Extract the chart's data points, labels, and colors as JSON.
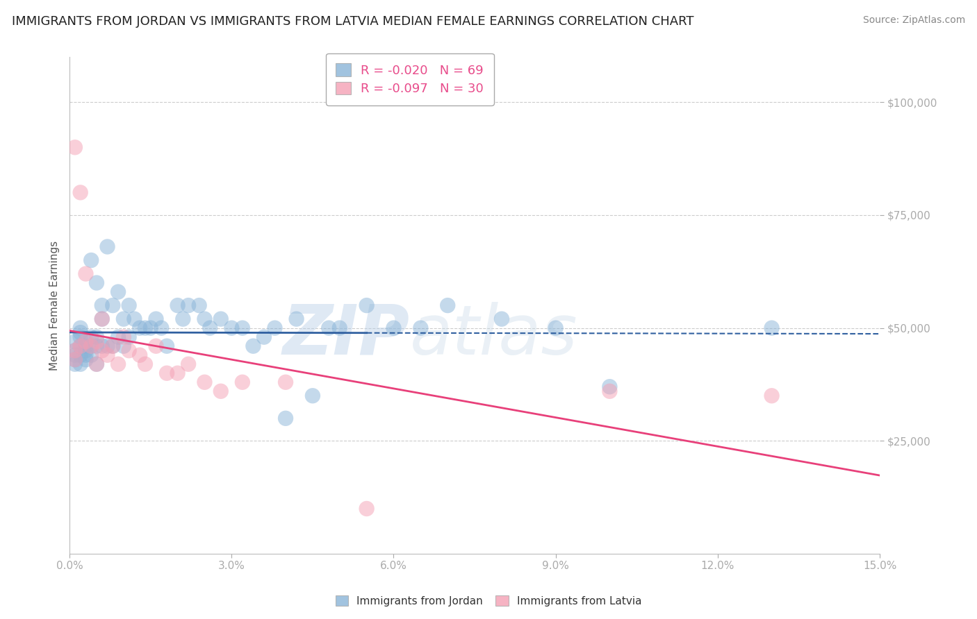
{
  "title": "IMMIGRANTS FROM JORDAN VS IMMIGRANTS FROM LATVIA MEDIAN FEMALE EARNINGS CORRELATION CHART",
  "source": "Source: ZipAtlas.com",
  "ylabel": "Median Female Earnings",
  "xlabel": "",
  "xlim": [
    0,
    0.15
  ],
  "ylim": [
    0,
    110000
  ],
  "xticks": [
    0.0,
    0.03,
    0.06,
    0.09,
    0.12,
    0.15
  ],
  "xtick_labels": [
    "0.0%",
    "3.0%",
    "6.0%",
    "9.0%",
    "12.0%",
    "15.0%"
  ],
  "yticks": [
    25000,
    50000,
    75000,
    100000
  ],
  "ytick_labels": [
    "$25,000",
    "$50,000",
    "$75,000",
    "$100,000"
  ],
  "jordan_color": "#8ab4d8",
  "latvia_color": "#f4a0b5",
  "jordan_line_color": "#3060a0",
  "latvia_line_color": "#e8407a",
  "jordan_line_solid_end": 0.055,
  "R_jordan": -0.02,
  "N_jordan": 69,
  "R_latvia": -0.097,
  "N_latvia": 30,
  "legend_text_color": "#e84c8b",
  "background_color": "#ffffff",
  "grid_color": "#cccccc",
  "axis_color": "#4472c4",
  "title_fontsize": 13,
  "tick_fontsize": 11,
  "watermark_text": "ZIPatlas",
  "jordan_x": [
    0.001,
    0.001,
    0.001,
    0.001,
    0.001,
    0.002,
    0.002,
    0.002,
    0.002,
    0.002,
    0.002,
    0.003,
    0.003,
    0.003,
    0.003,
    0.003,
    0.004,
    0.004,
    0.004,
    0.004,
    0.005,
    0.005,
    0.005,
    0.005,
    0.006,
    0.006,
    0.006,
    0.007,
    0.007,
    0.008,
    0.008,
    0.009,
    0.009,
    0.01,
    0.01,
    0.011,
    0.011,
    0.012,
    0.013,
    0.014,
    0.015,
    0.016,
    0.017,
    0.018,
    0.02,
    0.021,
    0.022,
    0.024,
    0.025,
    0.026,
    0.028,
    0.03,
    0.032,
    0.034,
    0.036,
    0.038,
    0.04,
    0.042,
    0.045,
    0.048,
    0.05,
    0.055,
    0.06,
    0.065,
    0.07,
    0.08,
    0.09,
    0.1,
    0.13
  ],
  "jordan_y": [
    45000,
    47000,
    43000,
    42000,
    44000,
    49000,
    46000,
    48000,
    44000,
    42000,
    50000,
    47000,
    45000,
    43000,
    46000,
    44000,
    65000,
    48000,
    46000,
    44000,
    60000,
    48000,
    46000,
    42000,
    55000,
    52000,
    46000,
    68000,
    46000,
    55000,
    46000,
    58000,
    48000,
    52000,
    46000,
    55000,
    48000,
    52000,
    50000,
    50000,
    50000,
    52000,
    50000,
    46000,
    55000,
    52000,
    55000,
    55000,
    52000,
    50000,
    52000,
    50000,
    50000,
    46000,
    48000,
    50000,
    30000,
    52000,
    35000,
    50000,
    50000,
    55000,
    50000,
    50000,
    55000,
    52000,
    50000,
    37000,
    50000
  ],
  "latvia_x": [
    0.001,
    0.001,
    0.001,
    0.002,
    0.002,
    0.003,
    0.003,
    0.004,
    0.005,
    0.005,
    0.006,
    0.006,
    0.007,
    0.008,
    0.009,
    0.01,
    0.011,
    0.013,
    0.014,
    0.016,
    0.018,
    0.02,
    0.022,
    0.025,
    0.028,
    0.032,
    0.04,
    0.055,
    0.1,
    0.13
  ],
  "latvia_y": [
    90000,
    45000,
    43000,
    80000,
    46000,
    47000,
    62000,
    46000,
    47000,
    42000,
    52000,
    45000,
    44000,
    46000,
    42000,
    48000,
    45000,
    44000,
    42000,
    46000,
    40000,
    40000,
    42000,
    38000,
    36000,
    38000,
    38000,
    10000,
    36000,
    35000
  ]
}
